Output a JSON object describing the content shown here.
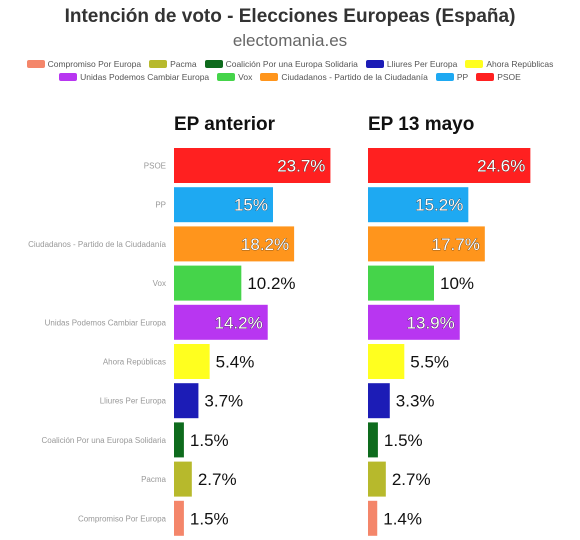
{
  "header": {
    "title": "Intención de voto - Elecciones Europeas (España)",
    "subtitle": "electomania.es"
  },
  "legend": [
    {
      "name": "Compromiso Por Europa",
      "color": "#f4866a"
    },
    {
      "name": "Pacma",
      "color": "#b7b92c"
    },
    {
      "name": "Coalición Por una Europa Solidaria",
      "color": "#0e6b1d"
    },
    {
      "name": "Lliures Per Europa",
      "color": "#1c1cb6"
    },
    {
      "name": "Ahora Repúblicas",
      "color": "#ffff1f"
    },
    {
      "name": "Unidas Podemos Cambiar Europa",
      "color": "#b836f1"
    },
    {
      "name": "Vox",
      "color": "#45d44a"
    },
    {
      "name": "Ciudadanos - Partido de la Ciudadanía",
      "color": "#ff951c"
    },
    {
      "name": "PP",
      "color": "#1ea9f2"
    },
    {
      "name": "PSOE",
      "color": "#ff2020"
    }
  ],
  "chart_data": {
    "type": "bar",
    "orientation": "horizontal",
    "categories": [
      "PSOE",
      "PP",
      "Ciudadanos - Partido de la Ciudadanía",
      "Vox",
      "Unidas Podemos Cambiar Europa",
      "Ahora Repúblicas",
      "Lliures Per Europa",
      "Coalición Por una Europa Solidaria",
      "Pacma",
      "Compromiso Por Europa"
    ],
    "colors": [
      "#ff2020",
      "#1ea9f2",
      "#ff951c",
      "#45d44a",
      "#b836f1",
      "#ffff1f",
      "#1c1cb6",
      "#0e6b1d",
      "#b7b92c",
      "#f4866a"
    ],
    "series": [
      {
        "name": "EP anterior",
        "values": [
          23.7,
          15,
          18.2,
          10.2,
          14.2,
          5.4,
          3.7,
          1.5,
          2.7,
          1.5
        ],
        "labels": [
          "23.7%",
          "15%",
          "18.2%",
          "10.2%",
          "14.2%",
          "5.4%",
          "3.7%",
          "1.5%",
          "2.7%",
          "1.5%"
        ]
      },
      {
        "name": "EP 13 mayo",
        "values": [
          24.6,
          15.2,
          17.7,
          10,
          13.9,
          5.5,
          3.3,
          1.5,
          2.7,
          1.4
        ],
        "labels": [
          "24.6%",
          "15.2%",
          "17.7%",
          "10%",
          "13.9%",
          "5.5%",
          "3.3%",
          "1.5%",
          "2.7%",
          "1.4%"
        ]
      }
    ],
    "xlim": [
      0,
      25
    ],
    "legend_position": "top",
    "grid": false
  }
}
